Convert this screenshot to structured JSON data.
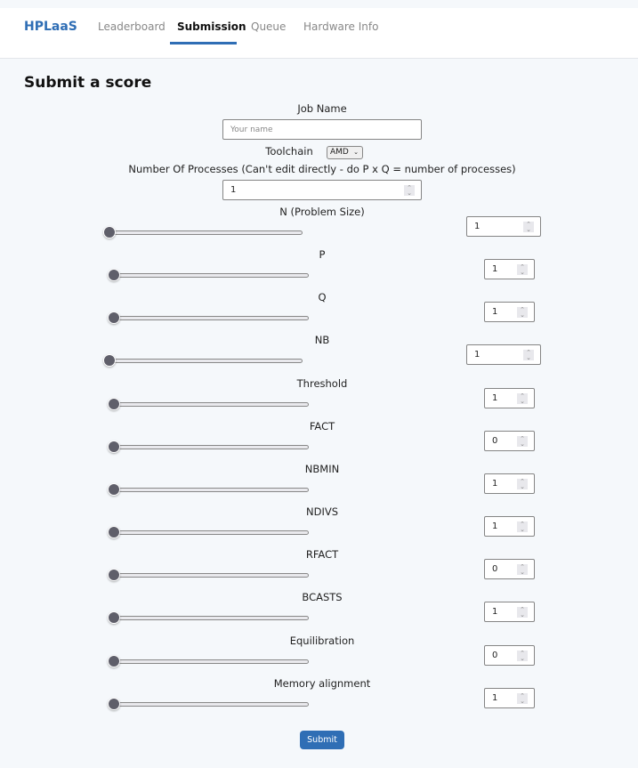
{
  "nav": {
    "brand": "HPLaaS",
    "tabs": [
      {
        "label": "Leaderboard"
      },
      {
        "label": "Submission",
        "active": true
      },
      {
        "label": "Queue"
      },
      {
        "label": "Hardware Info"
      }
    ]
  },
  "title": "Submit a score",
  "job_name": {
    "label": "Job Name",
    "placeholder": "Your name",
    "value": ""
  },
  "toolchain": {
    "label": "Toolchain",
    "selected": "AMD"
  },
  "processes": {
    "label": "Number Of Processes (Can't edit directly - do P x Q = number of processes)",
    "value": "1"
  },
  "params": [
    {
      "label": "N (Problem Size)",
      "value": "1",
      "slider_fraction": 0
    },
    {
      "label": "P",
      "value": "1",
      "slider_fraction": 0
    },
    {
      "label": "Q",
      "value": "1",
      "slider_fraction": 0
    },
    {
      "label": "NB",
      "value": "1",
      "slider_fraction": 0
    },
    {
      "label": "Threshold",
      "value": "1",
      "slider_fraction": 0
    },
    {
      "label": "FACT",
      "value": "0",
      "slider_fraction": 0
    },
    {
      "label": "NBMIN",
      "value": "1",
      "slider_fraction": 0
    },
    {
      "label": "NDIVS",
      "value": "1",
      "slider_fraction": 0
    },
    {
      "label": "RFACT",
      "value": "0",
      "slider_fraction": 0
    },
    {
      "label": "BCASTS",
      "value": "1",
      "slider_fraction": 0
    },
    {
      "label": "Equilibration",
      "value": "0",
      "slider_fraction": 0
    },
    {
      "label": "Memory alignment",
      "value": "1",
      "slider_fraction": 0
    }
  ],
  "submit_label": "Submit",
  "colors": {
    "accent": "#2f6eb5",
    "background": "#f5f8fb"
  }
}
